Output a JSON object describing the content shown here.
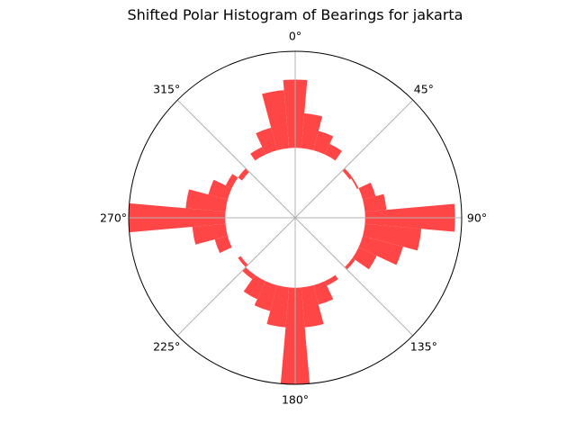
{
  "chart_data": {
    "type": "bar",
    "subtype": "polar-histogram",
    "title": "Shifted Polar Histogram of Bearings for jakarta",
    "theta_direction": "clockwise",
    "theta_zero": "north",
    "angle_ticks": [
      {
        "angle": 0,
        "label": "0°"
      },
      {
        "angle": 45,
        "label": "45°"
      },
      {
        "angle": 90,
        "label": "90°"
      },
      {
        "angle": 135,
        "label": "135°"
      },
      {
        "angle": 180,
        "label": "180°"
      },
      {
        "angle": 225,
        "label": "225°"
      },
      {
        "angle": 270,
        "label": "270°"
      },
      {
        "angle": 315,
        "label": "315°"
      }
    ],
    "bin_width_deg": 10,
    "radial_range": [
      0,
      100
    ],
    "bar_base": 42,
    "bar_color": "#ff4040",
    "grid": true,
    "series": [
      {
        "bin_centers": [
          0,
          10,
          20,
          30,
          40,
          50,
          60,
          70,
          80,
          90,
          100,
          110,
          120,
          130,
          140,
          150,
          160,
          170,
          180,
          190,
          200,
          210,
          220,
          230,
          240,
          250,
          260,
          270,
          280,
          290,
          300,
          310,
          320,
          330,
          340,
          350
        ],
        "values": [
          83,
          63,
          54,
          49,
          42,
          40,
          41,
          50,
          55,
          96,
          76,
          67,
          54,
          44,
          42,
          45,
          54,
          66,
          100,
          66,
          58,
          54,
          45,
          40,
          42,
          50,
          62,
          100,
          66,
          54,
          46,
          39,
          42,
          47,
          56,
          77
        ]
      }
    ]
  }
}
